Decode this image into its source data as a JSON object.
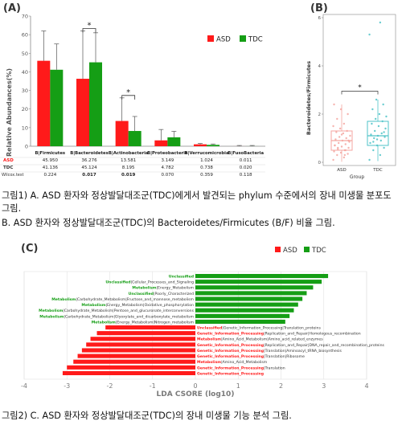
{
  "panel_a": {
    "label": "(A)",
    "legend": [
      {
        "name": "ASD",
        "color": "#ff1a1a"
      },
      {
        "name": "TDC",
        "color": "#159e15"
      }
    ],
    "row_labels": [
      "ASD",
      "TDC",
      "Wilcox.test"
    ],
    "sig_marks": [
      "*",
      "*"
    ]
  },
  "panel_b": {
    "label": "(B)",
    "sig_mark": "*",
    "colors": {
      "ASD": "#f4a6a0",
      "TDC": "#4fc3c8"
    }
  },
  "panel_c": {
    "label": "(C)",
    "legend": [
      {
        "name": "ASD",
        "color": "#ff1a1a"
      },
      {
        "name": "TDC",
        "color": "#159e15"
      }
    ]
  },
  "captions": {
    "cap1": "그림1) A. ASD 환자와 정상발달대조군(TDC)에게서 발견되는 phylum 수준에서의 장내 미생물 분포도 그림.",
    "cap2": "B. ASD 환자와 정상발달대조군(TDC)의 Bacteroidetes/Firmicutes (B/F) 비율 그림.",
    "cap3": "그림2) C. ASD 환자와 정상발달대조군(TDC)의 장내 미생물 기능 분석 그림."
  },
  "chart_data": [
    {
      "type": "bar",
      "ylabel": "Relative Abundances(%)",
      "ylim": [
        0,
        70
      ],
      "yticks": [
        0,
        10,
        20,
        30,
        40,
        50,
        60,
        70
      ],
      "categories": [
        "B|Firmicutes",
        "B|Bacteroidetes",
        "B|Actinobacteria",
        "B|Proteobacteria",
        "B|Verrucomicrobia",
        "B|FusoBacteria"
      ],
      "series": [
        {
          "name": "ASD",
          "values": [
            45.95,
            36.276,
            13.581,
            3.149,
            1.024,
            0.011
          ],
          "labels": [
            "45.950",
            "36.276",
            "13.581",
            "3.149",
            "1.024",
            "0.011"
          ],
          "err_upper": [
            62,
            62,
            26,
            9,
            1.5,
            0.4
          ]
        },
        {
          "name": "TDC",
          "values": [
            41.136,
            45.124,
            8.195,
            4.782,
            0.738,
            0.02
          ],
          "labels": [
            "41.136",
            "45.124",
            "8.195",
            "4.782",
            "0.738",
            "0.020"
          ],
          "err_upper": [
            55,
            61,
            16,
            8,
            1.2,
            0.4
          ]
        }
      ],
      "wilcox": [
        "0.224",
        "0.017",
        "0.019",
        "0.070",
        "0.359",
        "0.118"
      ],
      "significant": [
        false,
        true,
        true,
        false,
        false,
        false
      ],
      "grid": false,
      "legend_position": "top-right"
    },
    {
      "type": "boxplot",
      "ylabel": "Bacteroidetes/Firmicutes",
      "xlabel": "Group",
      "categories": [
        "ASD",
        "TDC"
      ],
      "ylim": [
        0,
        6
      ],
      "yticks": [
        0,
        2,
        4,
        6
      ],
      "boxes": [
        {
          "name": "ASD",
          "q1": 0.5,
          "median": 0.9,
          "q3": 1.3,
          "whisker_low": 0.02,
          "whisker_high": 2.4
        },
        {
          "name": "TDC",
          "q1": 0.7,
          "median": 1.1,
          "q3": 1.7,
          "whisker_low": 0.05,
          "whisker_high": 2.6
        }
      ],
      "points": {
        "ASD": [
          0.1,
          0.2,
          0.3,
          0.35,
          0.4,
          0.45,
          0.5,
          0.55,
          0.6,
          0.65,
          0.7,
          0.75,
          0.8,
          0.85,
          0.9,
          0.95,
          1.0,
          1.05,
          1.1,
          1.2,
          1.25,
          1.3,
          1.4,
          1.5,
          1.6,
          1.8,
          2.0,
          2.2,
          2.4,
          0.3,
          0.6,
          0.9,
          1.15,
          0.7,
          0.5
        ],
        "TDC": [
          0.1,
          0.3,
          0.5,
          0.6,
          0.7,
          0.8,
          0.9,
          1.0,
          1.05,
          1.1,
          1.15,
          1.2,
          1.3,
          1.4,
          1.5,
          1.6,
          1.7,
          1.8,
          1.9,
          2.0,
          2.2,
          2.4,
          2.6,
          5.3,
          5.8,
          0.85,
          1.25,
          0.95
        ]
      },
      "sig": "*",
      "grid": false
    },
    {
      "type": "bar",
      "orientation": "horizontal",
      "xlabel": "LDA CSORE (log10)",
      "xlim": [
        -4,
        4
      ],
      "xticks": [
        -4,
        -3,
        -2,
        -1,
        0,
        1,
        2,
        3,
        4
      ],
      "series_colors": {
        "ASD": "#ff1a1a",
        "TDC": "#159e15"
      },
      "bars": [
        {
          "group": "TDC",
          "value": 3.1,
          "label": "Unclassified"
        },
        {
          "group": "TDC",
          "value": 2.95,
          "label": "Unclassified|Cellular_Processes_and_Signaling"
        },
        {
          "group": "TDC",
          "value": 2.75,
          "label": "Metabolism|Energy_Metabolism"
        },
        {
          "group": "TDC",
          "value": 2.6,
          "label": "Unclassified|Poorly_Characterized"
        },
        {
          "group": "TDC",
          "value": 2.5,
          "label": "Metabolism|Carbohydrate_Metabolism|Fructose_and_mannose_metabolism"
        },
        {
          "group": "TDC",
          "value": 2.4,
          "label": "Metabolism|Energy_Metabolism|Oxidative_phosphorylation"
        },
        {
          "group": "TDC",
          "value": 2.3,
          "label": "Metabolism|Carbohydrate_Metabolism|Pentose_and_glucuronate_interconversions"
        },
        {
          "group": "TDC",
          "value": 2.2,
          "label": "Metabolism|Carbohydrate_Metabolism|Glyoxylate_and_dicarboxylate_metabolism"
        },
        {
          "group": "TDC",
          "value": 2.1,
          "label": "Metabolism|Energy_Metabolism|Nitrogen_metabolism"
        },
        {
          "group": "ASD",
          "value": -2.1,
          "label": "Unclassified|Genetic_Information_Processing|Translation_proteins"
        },
        {
          "group": "ASD",
          "value": -2.3,
          "label": "Genetic_Information_Processing|Replication_and_Repair|Homologous_recombination"
        },
        {
          "group": "ASD",
          "value": -2.45,
          "label": "Metabolism|Amino_Acid_Metabolism|Amino_acid_related_enzymes"
        },
        {
          "group": "ASD",
          "value": -2.55,
          "label": "Genetic_Information_Processing|Replication_and_Repair|DNA_repair_and_recombination_proteins"
        },
        {
          "group": "ASD",
          "value": -2.65,
          "label": "Genetic_Information_Processing|Translation|Aminoacyl_tRNA_biosynthesis"
        },
        {
          "group": "ASD",
          "value": -2.75,
          "label": "Genetic_Information_Processing|Translation|Ribosome"
        },
        {
          "group": "ASD",
          "value": -2.85,
          "label": "Metabolism|Amino_Acid_Metabolism"
        },
        {
          "group": "ASD",
          "value": -3.0,
          "label": "Genetic_Information_Processing|Translation"
        },
        {
          "group": "ASD",
          "value": -3.1,
          "label": "Genetic_Information_Processing"
        }
      ],
      "grid": true,
      "legend_position": "top-right"
    }
  ]
}
